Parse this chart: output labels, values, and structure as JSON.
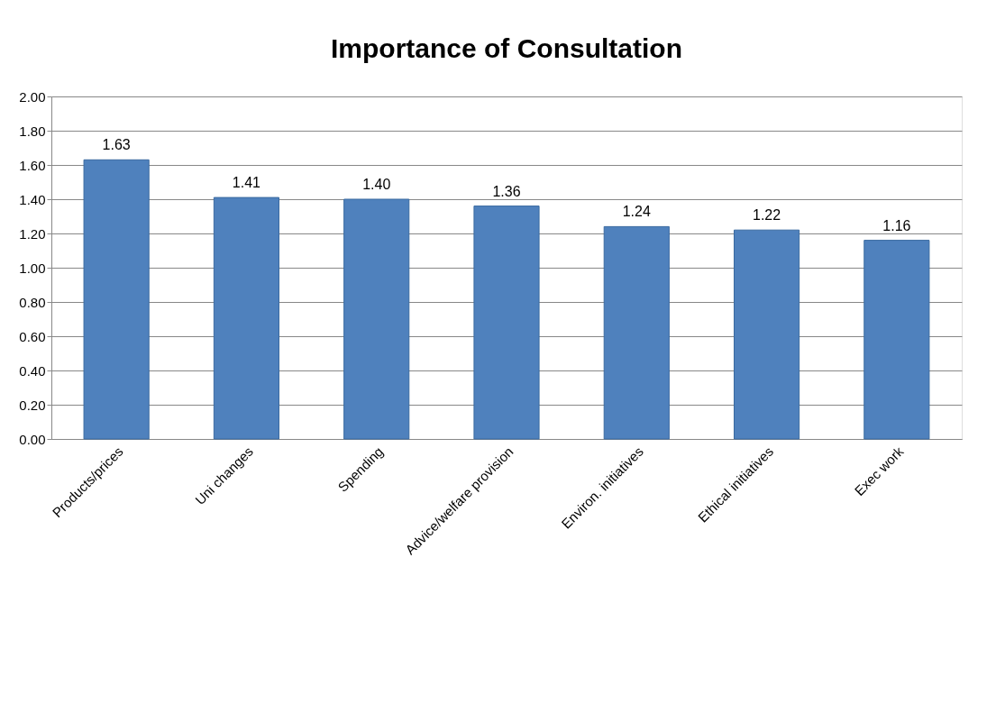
{
  "chart_data": {
    "type": "bar",
    "title": "Importance of Consultation",
    "categories": [
      "Products/prices",
      "Uni changes",
      "Spending",
      "Advice/welfare provision",
      "Environ. initiatives",
      "Ethical initiatives",
      "Exec work"
    ],
    "values": [
      1.63,
      1.41,
      1.4,
      1.36,
      1.24,
      1.22,
      1.16
    ],
    "value_labels": [
      "1.63",
      "1.41",
      "1.40",
      "1.36",
      "1.24",
      "1.22",
      "1.16"
    ],
    "color": "#4f81bd",
    "ylim": [
      0,
      2
    ],
    "yticks": [
      {
        "value": 0,
        "label": "0.00"
      },
      {
        "value": 0.2,
        "label": "0.20"
      },
      {
        "value": 0.4,
        "label": "0.40"
      },
      {
        "value": 0.6,
        "label": "0.60"
      },
      {
        "value": 0.8,
        "label": "0.80"
      },
      {
        "value": 1,
        "label": "1.00"
      },
      {
        "value": 1.2,
        "label": "1.20"
      },
      {
        "value": 1.4,
        "label": "1.40"
      },
      {
        "value": 1.6,
        "label": "1.60"
      },
      {
        "value": 1.8,
        "label": "1.80"
      },
      {
        "value": 2,
        "label": "2.00"
      }
    ],
    "grid": "y"
  }
}
